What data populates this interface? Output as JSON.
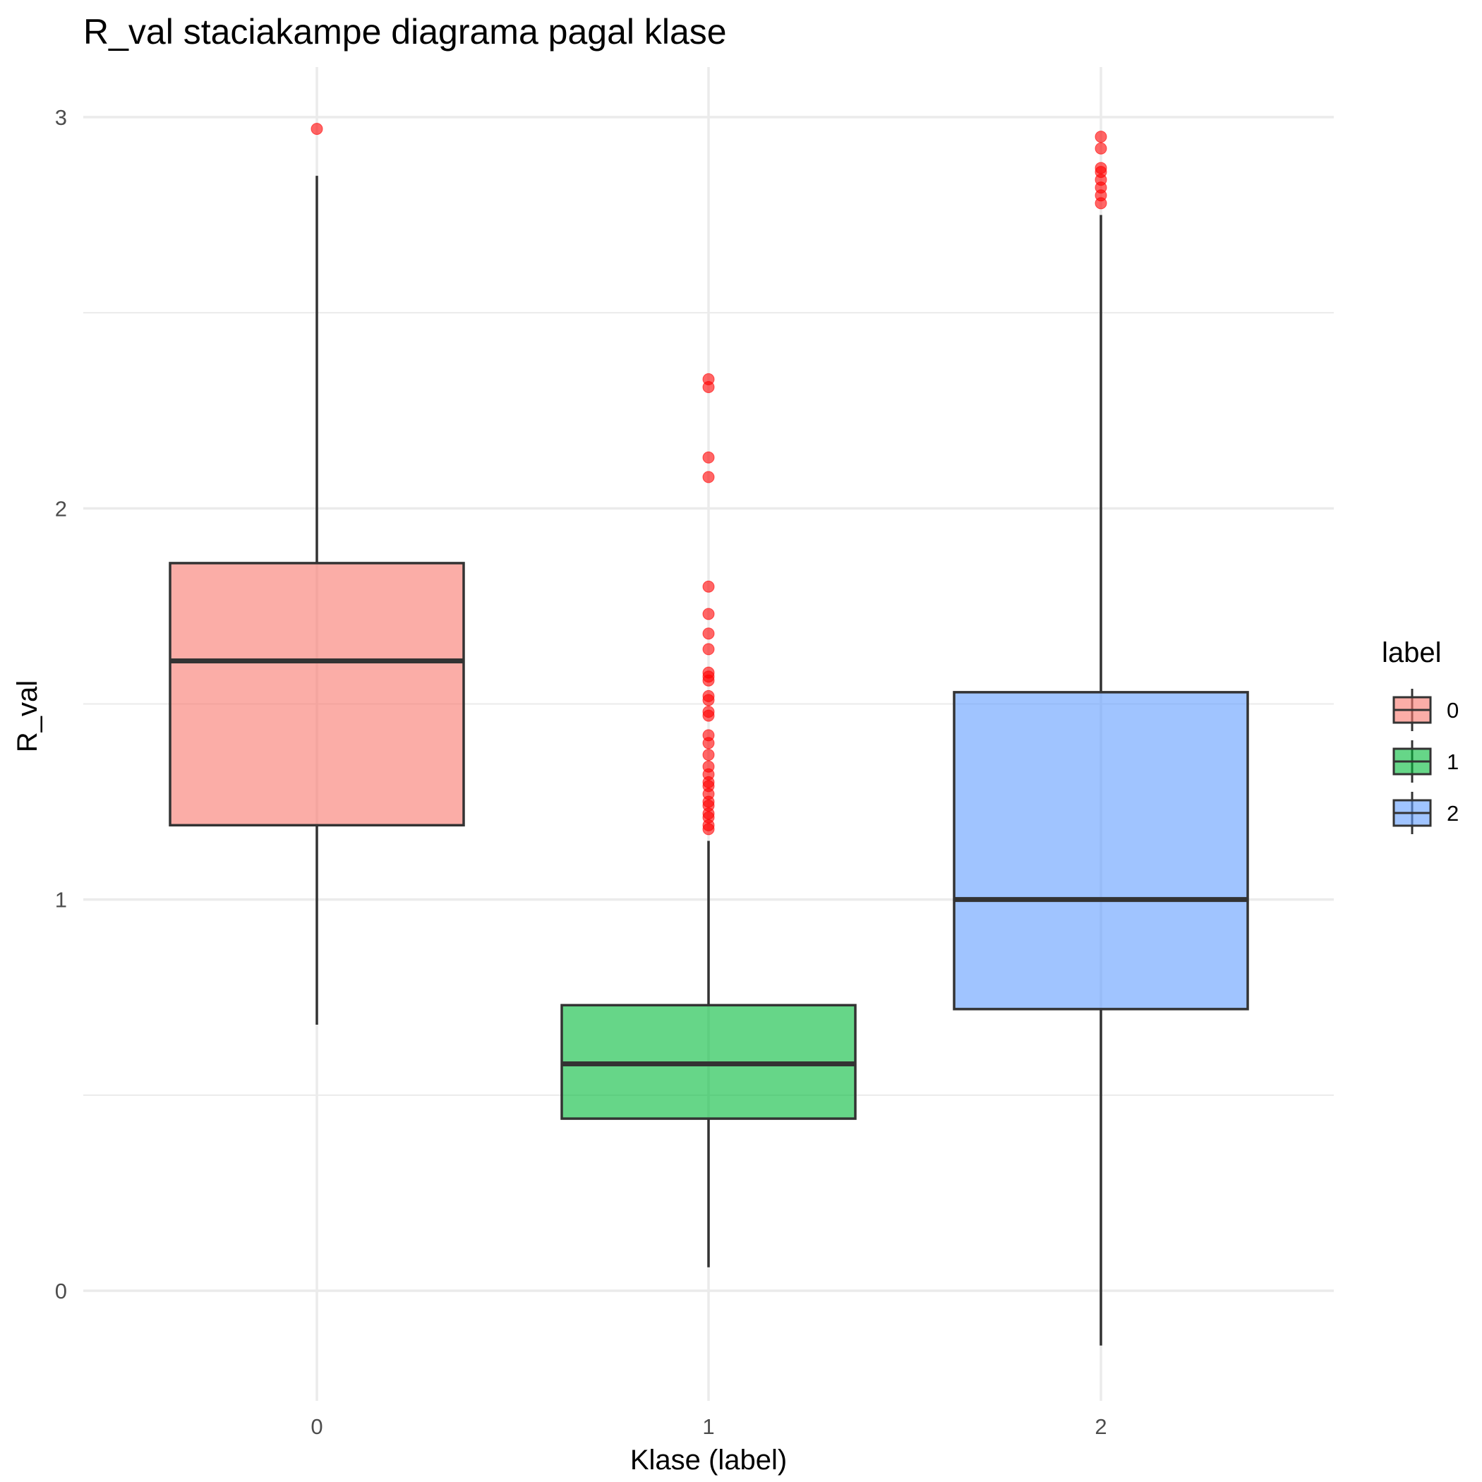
{
  "chart_data": {
    "type": "box",
    "title": "R_val staciakampe diagrama pagal klase",
    "xlabel": "Klase (label)",
    "ylabel": "R_val",
    "ylim": [
      -0.3,
      3.13
    ],
    "yticks": [
      "0",
      "1",
      "2",
      "3"
    ],
    "grid": true,
    "legend": {
      "title": "label",
      "position": "right"
    },
    "outlier_color": "#ff0000",
    "box_outline_color": "#333333",
    "categories": [
      "0",
      "1",
      "2"
    ],
    "series": [
      {
        "name": "0",
        "color": "#f8766d",
        "whisker_low": 0.68,
        "q1": 1.19,
        "median": 1.61,
        "q3": 1.86,
        "whisker_high": 2.85,
        "outliers": [
          2.97
        ]
      },
      {
        "name": "1",
        "color": "#00ba38",
        "whisker_low": 0.06,
        "q1": 0.44,
        "median": 0.58,
        "q3": 0.73,
        "whisker_high": 1.15,
        "outliers": [
          2.33,
          2.31,
          2.13,
          2.08,
          1.8,
          1.73,
          1.68,
          1.64,
          1.58,
          1.57,
          1.56,
          1.52,
          1.51,
          1.48,
          1.47,
          1.42,
          1.4,
          1.37,
          1.34,
          1.32,
          1.3,
          1.29,
          1.27,
          1.25,
          1.24,
          1.22,
          1.21,
          1.19,
          1.18
        ]
      },
      {
        "name": "2",
        "color": "#619cff",
        "whisker_low": -0.14,
        "q1": 0.72,
        "median": 1.0,
        "q3": 1.53,
        "whisker_high": 2.75,
        "outliers": [
          2.95,
          2.92,
          2.87,
          2.86,
          2.84,
          2.82,
          2.8,
          2.78
        ]
      }
    ]
  }
}
